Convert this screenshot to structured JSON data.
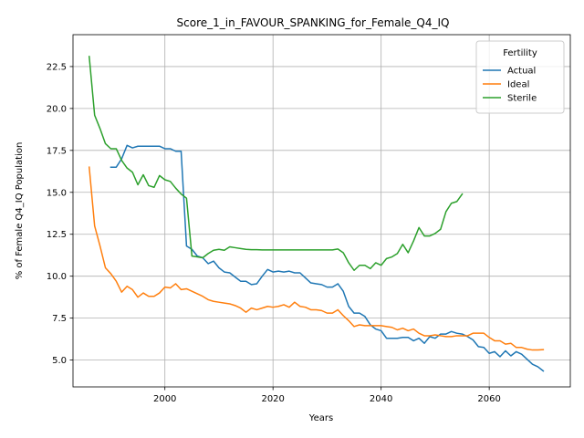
{
  "chart_data": {
    "type": "line",
    "title": "Score_1_in_FAVOUR_SPANKING_for_Female_Q4_IQ",
    "xlabel": "Years",
    "ylabel": "% of Female Q4_IQ Population",
    "xlim": [
      1983,
      2075
    ],
    "ylim": [
      3.4,
      24.4
    ],
    "xticks": [
      2000,
      2020,
      2040,
      2060
    ],
    "yticks": [
      5.0,
      7.5,
      10.0,
      12.5,
      15.0,
      17.5,
      20.0,
      22.5
    ],
    "ytick_labels": [
      "5.0",
      "7.5",
      "10.0",
      "12.5",
      "15.0",
      "17.5",
      "20.0",
      "22.5"
    ],
    "grid": true,
    "legend": {
      "title": "Fertility",
      "position": "top-right"
    },
    "series": [
      {
        "name": "Actual",
        "color": "#1f77b4",
        "points": [
          [
            1990,
            16.5
          ],
          [
            1991,
            16.5
          ],
          [
            1992,
            17.0
          ],
          [
            1993,
            17.8
          ],
          [
            1994,
            17.65
          ],
          [
            1995,
            17.75
          ],
          [
            1996,
            17.75
          ],
          [
            1997,
            17.75
          ],
          [
            1998,
            17.75
          ],
          [
            1999,
            17.75
          ],
          [
            2000,
            17.6
          ],
          [
            2001,
            17.6
          ],
          [
            2002,
            17.45
          ],
          [
            2003,
            17.45
          ],
          [
            2004,
            11.8
          ],
          [
            2005,
            11.6
          ],
          [
            2006,
            11.2
          ],
          [
            2007,
            11.1
          ],
          [
            2008,
            10.75
          ],
          [
            2009,
            10.9
          ],
          [
            2010,
            10.5
          ],
          [
            2011,
            10.25
          ],
          [
            2012,
            10.2
          ],
          [
            2013,
            9.95
          ],
          [
            2014,
            9.7
          ],
          [
            2015,
            9.7
          ],
          [
            2016,
            9.5
          ],
          [
            2017,
            9.55
          ],
          [
            2018,
            10.0
          ],
          [
            2019,
            10.4
          ],
          [
            2020,
            10.25
          ],
          [
            2021,
            10.3
          ],
          [
            2022,
            10.25
          ],
          [
            2023,
            10.3
          ],
          [
            2024,
            10.2
          ],
          [
            2025,
            10.2
          ],
          [
            2026,
            9.9
          ],
          [
            2027,
            9.6
          ],
          [
            2028,
            9.55
          ],
          [
            2029,
            9.5
          ],
          [
            2030,
            9.35
          ],
          [
            2031,
            9.35
          ],
          [
            2032,
            9.55
          ],
          [
            2033,
            9.1
          ],
          [
            2034,
            8.2
          ],
          [
            2035,
            7.8
          ],
          [
            2036,
            7.8
          ],
          [
            2037,
            7.6
          ],
          [
            2038,
            7.1
          ],
          [
            2039,
            6.85
          ],
          [
            2040,
            6.75
          ],
          [
            2041,
            6.3
          ],
          [
            2042,
            6.3
          ],
          [
            2043,
            6.3
          ],
          [
            2044,
            6.35
          ],
          [
            2045,
            6.35
          ],
          [
            2046,
            6.15
          ],
          [
            2047,
            6.3
          ],
          [
            2048,
            6.0
          ],
          [
            2049,
            6.4
          ],
          [
            2050,
            6.3
          ],
          [
            2051,
            6.55
          ],
          [
            2052,
            6.55
          ],
          [
            2053,
            6.7
          ],
          [
            2054,
            6.6
          ],
          [
            2055,
            6.55
          ],
          [
            2056,
            6.4
          ],
          [
            2057,
            6.2
          ],
          [
            2058,
            5.8
          ],
          [
            2059,
            5.75
          ],
          [
            2060,
            5.4
          ],
          [
            2061,
            5.5
          ],
          [
            2062,
            5.2
          ],
          [
            2063,
            5.55
          ],
          [
            2064,
            5.25
          ],
          [
            2065,
            5.5
          ],
          [
            2066,
            5.35
          ],
          [
            2067,
            5.05
          ],
          [
            2068,
            4.75
          ],
          [
            2069,
            4.6
          ],
          [
            2070,
            4.35
          ]
        ]
      },
      {
        "name": "Ideal",
        "color": "#ff7f0e",
        "points": [
          [
            1986,
            16.5
          ],
          [
            1987,
            13.0
          ],
          [
            1988,
            11.8
          ],
          [
            1989,
            10.5
          ],
          [
            1990,
            10.15
          ],
          [
            1991,
            9.7
          ],
          [
            1992,
            9.05
          ],
          [
            1993,
            9.4
          ],
          [
            1994,
            9.2
          ],
          [
            1995,
            8.75
          ],
          [
            1996,
            9.0
          ],
          [
            1997,
            8.8
          ],
          [
            1998,
            8.8
          ],
          [
            1999,
            9.0
          ],
          [
            2000,
            9.35
          ],
          [
            2001,
            9.3
          ],
          [
            2002,
            9.55
          ],
          [
            2003,
            9.2
          ],
          [
            2004,
            9.25
          ],
          [
            2005,
            9.1
          ],
          [
            2006,
            8.95
          ],
          [
            2007,
            8.8
          ],
          [
            2008,
            8.6
          ],
          [
            2009,
            8.5
          ],
          [
            2010,
            8.45
          ],
          [
            2011,
            8.4
          ],
          [
            2012,
            8.35
          ],
          [
            2013,
            8.25
          ],
          [
            2014,
            8.1
          ],
          [
            2015,
            7.85
          ],
          [
            2016,
            8.1
          ],
          [
            2017,
            8.0
          ],
          [
            2018,
            8.1
          ],
          [
            2019,
            8.2
          ],
          [
            2020,
            8.15
          ],
          [
            2021,
            8.2
          ],
          [
            2022,
            8.3
          ],
          [
            2023,
            8.15
          ],
          [
            2024,
            8.45
          ],
          [
            2025,
            8.2
          ],
          [
            2026,
            8.15
          ],
          [
            2027,
            8.0
          ],
          [
            2028,
            8.0
          ],
          [
            2029,
            7.95
          ],
          [
            2030,
            7.8
          ],
          [
            2031,
            7.8
          ],
          [
            2032,
            8.0
          ],
          [
            2033,
            7.65
          ],
          [
            2034,
            7.35
          ],
          [
            2035,
            7.0
          ],
          [
            2036,
            7.1
          ],
          [
            2037,
            7.05
          ],
          [
            2038,
            7.05
          ],
          [
            2039,
            7.05
          ],
          [
            2040,
            7.05
          ],
          [
            2041,
            7.0
          ],
          [
            2042,
            6.95
          ],
          [
            2043,
            6.8
          ],
          [
            2044,
            6.9
          ],
          [
            2045,
            6.75
          ],
          [
            2046,
            6.85
          ],
          [
            2047,
            6.6
          ],
          [
            2048,
            6.45
          ],
          [
            2049,
            6.45
          ],
          [
            2050,
            6.5
          ],
          [
            2051,
            6.45
          ],
          [
            2052,
            6.4
          ],
          [
            2053,
            6.4
          ],
          [
            2054,
            6.45
          ],
          [
            2055,
            6.45
          ],
          [
            2056,
            6.45
          ],
          [
            2057,
            6.6
          ],
          [
            2058,
            6.6
          ],
          [
            2059,
            6.6
          ],
          [
            2060,
            6.35
          ],
          [
            2061,
            6.15
          ],
          [
            2062,
            6.15
          ],
          [
            2063,
            5.95
          ],
          [
            2064,
            6.0
          ],
          [
            2065,
            5.75
          ],
          [
            2066,
            5.75
          ],
          [
            2067,
            5.65
          ],
          [
            2068,
            5.6
          ],
          [
            2069,
            5.6
          ],
          [
            2070,
            5.62
          ]
        ]
      },
      {
        "name": "Sterile",
        "color": "#2ca02c",
        "points": [
          [
            1986,
            23.1
          ],
          [
            1987,
            19.6
          ],
          [
            1988,
            18.8
          ],
          [
            1989,
            17.9
          ],
          [
            1990,
            17.6
          ],
          [
            1991,
            17.6
          ],
          [
            1992,
            16.9
          ],
          [
            1993,
            16.45
          ],
          [
            1994,
            16.2
          ],
          [
            1995,
            15.45
          ],
          [
            1996,
            16.05
          ],
          [
            1997,
            15.4
          ],
          [
            1998,
            15.3
          ],
          [
            1999,
            16.0
          ],
          [
            2000,
            15.75
          ],
          [
            2001,
            15.65
          ],
          [
            2002,
            15.25
          ],
          [
            2003,
            14.9
          ],
          [
            2004,
            14.65
          ],
          [
            2005,
            11.2
          ],
          [
            2006,
            11.15
          ],
          [
            2007,
            11.1
          ],
          [
            2008,
            11.35
          ],
          [
            2009,
            11.55
          ],
          [
            2010,
            11.6
          ],
          [
            2011,
            11.55
          ],
          [
            2012,
            11.75
          ],
          [
            2013,
            11.7
          ],
          [
            2014,
            11.65
          ],
          [
            2015,
            11.6
          ],
          [
            2016,
            11.58
          ],
          [
            2017,
            11.58
          ],
          [
            2018,
            11.57
          ],
          [
            2019,
            11.57
          ],
          [
            2020,
            11.57
          ],
          [
            2021,
            11.57
          ],
          [
            2022,
            11.57
          ],
          [
            2023,
            11.57
          ],
          [
            2024,
            11.57
          ],
          [
            2025,
            11.57
          ],
          [
            2026,
            11.57
          ],
          [
            2027,
            11.57
          ],
          [
            2028,
            11.57
          ],
          [
            2029,
            11.57
          ],
          [
            2030,
            11.57
          ],
          [
            2031,
            11.57
          ],
          [
            2032,
            11.62
          ],
          [
            2033,
            11.4
          ],
          [
            2034,
            10.8
          ],
          [
            2035,
            10.35
          ],
          [
            2036,
            10.65
          ],
          [
            2037,
            10.65
          ],
          [
            2038,
            10.45
          ],
          [
            2039,
            10.8
          ],
          [
            2040,
            10.65
          ],
          [
            2041,
            11.05
          ],
          [
            2042,
            11.15
          ],
          [
            2043,
            11.35
          ],
          [
            2044,
            11.9
          ],
          [
            2045,
            11.4
          ],
          [
            2046,
            12.1
          ],
          [
            2047,
            12.9
          ],
          [
            2048,
            12.4
          ],
          [
            2049,
            12.4
          ],
          [
            2050,
            12.55
          ],
          [
            2051,
            12.8
          ],
          [
            2052,
            13.85
          ],
          [
            2053,
            14.35
          ],
          [
            2054,
            14.45
          ],
          [
            2055,
            14.9
          ]
        ]
      }
    ]
  }
}
